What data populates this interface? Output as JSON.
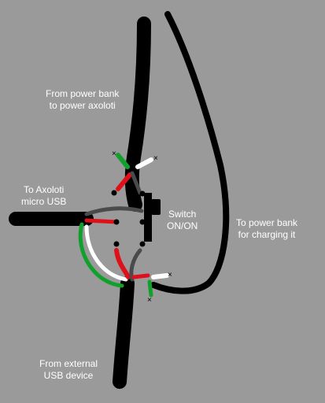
{
  "labels": {
    "power_bank_to_axoloti": [
      "From power bank",
      "to power axoloti"
    ],
    "to_axoloti_usb": [
      "To Axoloti",
      "micro USB"
    ],
    "switch": [
      "Switch",
      "ON/ON"
    ],
    "power_bank_charging": [
      "To power bank",
      "for charging it"
    ],
    "external_usb": [
      "From external",
      "USB device"
    ]
  },
  "colors": {
    "background": "#9a9a9a",
    "cable": "#000000",
    "wire_red": "#e0101a",
    "wire_green": "#12a02c",
    "wire_white": "#ffffff",
    "wire_gray": "#4a4a4a",
    "text": "#ffffff"
  }
}
